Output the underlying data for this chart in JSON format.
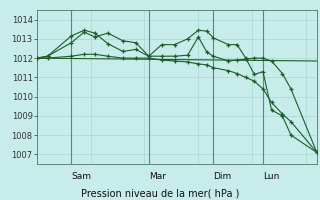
{
  "bg_color": "#c8ece9",
  "grid_color": "#a8d8d4",
  "line_color": "#1a5c2a",
  "spine_color": "#4a7a60",
  "ylim": [
    1006.5,
    1014.5
  ],
  "yticks": [
    1007,
    1008,
    1009,
    1010,
    1011,
    1012,
    1013,
    1014
  ],
  "xlabel": "Pression niveau de la mer( hPa )",
  "day_labels": [
    "Sam",
    "Mar",
    "Dim",
    "Lun"
  ],
  "day_positions": [
    16,
    52,
    82,
    105
  ],
  "xlim": [
    0,
    130
  ],
  "vline_color": "#5a8a70",
  "series1_x": [
    0,
    5,
    16,
    22,
    27,
    33,
    40,
    46,
    52,
    58,
    64,
    70,
    75,
    79,
    82,
    89,
    93,
    97,
    101,
    105,
    109,
    114,
    118,
    130
  ],
  "series1_y": [
    1012.0,
    1012.1,
    1012.8,
    1013.35,
    1013.1,
    1013.3,
    1012.9,
    1012.8,
    1012.1,
    1012.7,
    1012.7,
    1013.0,
    1013.45,
    1013.4,
    1013.05,
    1012.7,
    1012.7,
    1012.0,
    1011.15,
    1011.3,
    1009.3,
    1009.0,
    1008.0,
    1007.1
  ],
  "series2_x": [
    0,
    5,
    16,
    22,
    27,
    33,
    40,
    46,
    52,
    58,
    64,
    70,
    75,
    79,
    82,
    89,
    93,
    97,
    101,
    105,
    109,
    114,
    118,
    130
  ],
  "series2_y": [
    1012.0,
    1012.1,
    1013.15,
    1013.45,
    1013.3,
    1012.75,
    1012.35,
    1012.45,
    1012.1,
    1012.1,
    1012.1,
    1012.15,
    1013.1,
    1012.3,
    1012.1,
    1011.85,
    1011.9,
    1011.95,
    1012.0,
    1012.0,
    1011.85,
    1011.2,
    1010.4,
    1007.1
  ],
  "series3_x": [
    0,
    130
  ],
  "series3_y": [
    1012.0,
    1011.85
  ],
  "series4_x": [
    0,
    5,
    16,
    22,
    27,
    33,
    40,
    46,
    52,
    58,
    64,
    70,
    75,
    79,
    82,
    89,
    93,
    97,
    101,
    105,
    109,
    114,
    118,
    130
  ],
  "series4_y": [
    1012.0,
    1012.0,
    1012.1,
    1012.2,
    1012.2,
    1012.1,
    1012.0,
    1012.0,
    1012.0,
    1011.9,
    1011.85,
    1011.8,
    1011.7,
    1011.65,
    1011.5,
    1011.35,
    1011.2,
    1011.0,
    1010.8,
    1010.4,
    1009.7,
    1009.1,
    1008.7,
    1007.1
  ]
}
